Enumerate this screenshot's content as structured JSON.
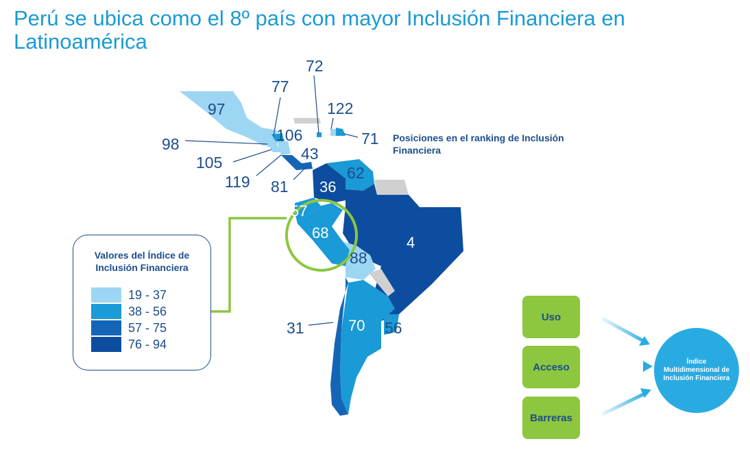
{
  "title": "Perú se ubica como el 8º país con mayor Inclusión Financiera en Latinoamérica",
  "ranking_caption": "Posiciones en el ranking de Inclusión Financiera",
  "legend": {
    "title": "Valores del Índice de Inclusión  Financiera",
    "items": [
      {
        "label": "19 - 37",
        "color": "#9dd6f3"
      },
      {
        "label": "38 - 56",
        "color": "#1a9ad6"
      },
      {
        "label": "57 - 75",
        "color": "#1565b7"
      },
      {
        "label": "76 - 94",
        "color": "#0d4da0"
      }
    ]
  },
  "ranks": {
    "mexico": "97",
    "guatemala": "98",
    "el_salvador": "105",
    "nicaragua": "119",
    "honduras": "77",
    "costa_rica": "106",
    "panama": "43",
    "jamaica": "72",
    "haiti": "122",
    "dominican_republic": "71",
    "colombia": "81",
    "venezuela": "62",
    "ecuador": "57",
    "peru": "68",
    "colombia_interior": "36",
    "brazil": "4",
    "bolivia": "88",
    "chile": "31",
    "argentina": "70",
    "uruguay": "56"
  },
  "components": {
    "uso": "Uso",
    "acceso": "Acceso",
    "barreras": "Barreras",
    "index": "Índice Multidimensional de Inclusión Financiera"
  },
  "colors": {
    "title": "#1a9ad6",
    "highlight": "#8dc63f",
    "no_data": "#d0d0d0"
  }
}
